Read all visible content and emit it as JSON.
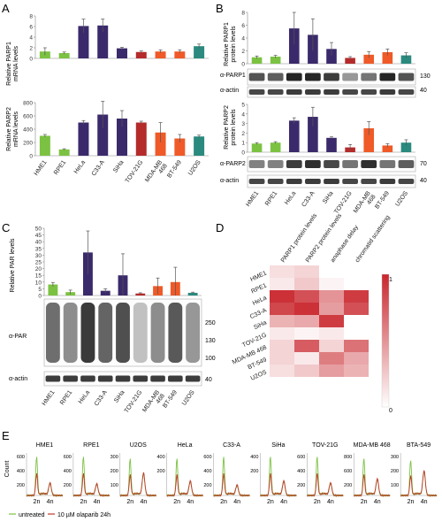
{
  "colors": {
    "HME1": "#7cc242",
    "RPE1": "#7cc242",
    "HeLa": "#3b2a6b",
    "C33-A": "#3b2a6b",
    "SiHa": "#3b2a6b",
    "TOV-21G": "#b52a2a",
    "MDA-MB 468": "#ef5a28",
    "BT-549": "#ef5a28",
    "U2OS": "#2a8a7e",
    "heat_high": "#c8262c",
    "heat_low": "#ffffff",
    "untreated": "#7cc242",
    "olaparib": "#c0392b"
  },
  "cell_lines": [
    "HME1",
    "RPE1",
    "HeLa",
    "C33-A",
    "SiHa",
    "TOV-21G",
    "MDA-MB 468",
    "BT-549",
    "U2OS"
  ],
  "panelA": {
    "letter": "A",
    "top": {
      "ylabel_1": "Relative PARP1",
      "ylabel_2": "mRNA levels",
      "yticks": [
        "0",
        "2",
        "4",
        "6",
        "8"
      ],
      "values": [
        1.3,
        1.0,
        6.1,
        6.2,
        1.9,
        1.2,
        1.3,
        1.3,
        2.3
      ],
      "errors": [
        0.7,
        0.2,
        1.3,
        1.2,
        0.2,
        0.2,
        0.3,
        0.3,
        0.4
      ]
    },
    "bottom": {
      "ylabel_1": "Relative PARP2",
      "ylabel_2": "mRNA levels",
      "yticks": [
        "0",
        "200",
        "400",
        "600",
        "800"
      ],
      "values": [
        300,
        95,
        500,
        620,
        560,
        500,
        350,
        260,
        290
      ],
      "errors": [
        20,
        10,
        30,
        200,
        120,
        20,
        150,
        60,
        20
      ]
    },
    "xlabels": [
      "HME1",
      "RPE1",
      "HeLa",
      "C33-A",
      "SiHa",
      "TOV-21G",
      "MDA-MB 468",
      "BT-549",
      "U2OS"
    ]
  },
  "panelB": {
    "letter": "B",
    "top": {
      "ylabel_1": "Relative PARP1",
      "ylabel_2": "protein levels",
      "yticks": [
        "0",
        "2",
        "4",
        "6",
        "8"
      ],
      "values": [
        1.0,
        1.1,
        5.5,
        4.5,
        2.3,
        0.9,
        1.4,
        1.8,
        1.3
      ],
      "errors": [
        0.2,
        0.2,
        2.5,
        2.5,
        1.0,
        0.2,
        0.5,
        0.5,
        0.4
      ]
    },
    "blot1": {
      "label": "α-PARP1",
      "marker": "130"
    },
    "actin1": {
      "label": "α-actin",
      "marker": "40"
    },
    "bottom": {
      "ylabel_1": "Relative PARP2",
      "ylabel_2": "protein levels",
      "yticks": [
        "0",
        "1",
        "2",
        "3",
        "4",
        "5"
      ],
      "values": [
        0.9,
        1.0,
        3.3,
        3.7,
        1.5,
        0.5,
        2.5,
        0.7,
        1.0
      ],
      "errors": [
        0.1,
        0.1,
        0.3,
        1.0,
        0.1,
        0.3,
        0.7,
        0.2,
        0.3
      ]
    },
    "blot2": {
      "label": "α-PARP2",
      "marker": "70"
    },
    "actin2": {
      "label": "α-actin",
      "marker": "40"
    },
    "xlabels": [
      "HME1",
      "RPE1",
      "HeLa",
      "C33-A",
      "SiHa",
      "TOV-21G",
      "MDA-MB 468",
      "BT-549",
      "U2OS"
    ]
  },
  "panelC": {
    "letter": "C",
    "ylabel": "Relative PAR levels",
    "yticks": [
      "0",
      "5",
      "10",
      "15",
      "20",
      "25",
      "30",
      "35",
      "40",
      "45",
      "50"
    ],
    "values": [
      8.2,
      2.5,
      32,
      3.5,
      15,
      1.5,
      7,
      10,
      2
    ],
    "errors": [
      1.5,
      1.5,
      16,
      1.5,
      16,
      0.5,
      6,
      11,
      0.5
    ],
    "blot": {
      "label": "α-PAR",
      "markers": [
        "250",
        "130",
        "100"
      ]
    },
    "actin": {
      "label": "α-actin",
      "marker": "40"
    },
    "xlabels": [
      "HME1",
      "RPE1",
      "HeLa",
      "C33-A",
      "SiHa",
      "TOV-21G",
      "MDA-MB 468",
      "BT-549",
      "U2OS"
    ]
  },
  "panelD": {
    "letter": "D",
    "columns": [
      "PARP1 protein levels",
      "PARP2 protein levels",
      "anaphase delay",
      "chromatid scattering"
    ],
    "rows": [
      "HME1",
      "RPE1",
      "HeLa",
      "C33-A",
      "SiHa",
      "TOV-21G",
      "MDA-MB 468",
      "BT-549",
      "U2OS"
    ],
    "values": [
      [
        0.15,
        0.2,
        0.0,
        0.0
      ],
      [
        0.1,
        0.25,
        0.05,
        0.0
      ],
      [
        0.95,
        0.8,
        0.5,
        0.9
      ],
      [
        0.85,
        0.95,
        0.45,
        0.8
      ],
      [
        0.35,
        0.4,
        0.9,
        0.0
      ],
      [
        0.1,
        0.05,
        0.1,
        0.0
      ],
      [
        0.2,
        0.75,
        0.2,
        0.65
      ],
      [
        0.2,
        0.1,
        0.6,
        0.4
      ],
      [
        0.15,
        0.25,
        0.45,
        0.35
      ]
    ],
    "scale_max": "1",
    "scale_min": "0"
  },
  "panelE": {
    "letter": "E",
    "ylabel": "Count",
    "xticks": [
      "2n",
      "4n"
    ],
    "plots": [
      {
        "title": "HME1",
        "ymax": "600",
        "ymid": "400",
        "ylow": "200"
      },
      {
        "title": "RPE1",
        "ymax": "600",
        "ymid": "400",
        "ylow": "200"
      },
      {
        "title": "U2OS",
        "ymax": "300",
        "ymid": "200",
        "ylow": "100"
      },
      {
        "title": "HeLa",
        "ymax": "400",
        "ymid": "200",
        "ylow": ""
      },
      {
        "title": "C33-A",
        "ymax": "600",
        "ymid": "400",
        "ylow": "200"
      },
      {
        "title": "SiHa",
        "ymax": "400",
        "ymid": "200",
        "ylow": ""
      },
      {
        "title": "TOV-21G",
        "ymax": "600",
        "ymid": "400",
        "ylow": "200"
      },
      {
        "title": "MDA-MB 468",
        "ymax": "800",
        "ymid": "600",
        "ylow": "200"
      },
      {
        "title": "BTA-549",
        "ymax": "300",
        "ymid": "200",
        "ylow": "100"
      }
    ],
    "legend": [
      {
        "label": "untreated",
        "color_key": "untreated"
      },
      {
        "label": "10 µM olaparib 24h",
        "color_key": "olaparib"
      }
    ]
  }
}
